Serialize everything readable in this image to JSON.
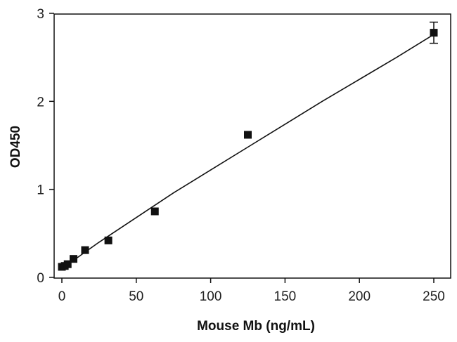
{
  "chart_data": {
    "type": "scatter",
    "title": "",
    "xlabel": "Mouse Mb (ng/mL)",
    "ylabel": "OD450",
    "xlim": [
      0,
      250
    ],
    "ylim": [
      0,
      3
    ],
    "xticks": [
      0,
      50,
      100,
      150,
      200,
      250
    ],
    "yticks": [
      0,
      1,
      2,
      3
    ],
    "grid": false,
    "legend": "none",
    "series": [
      {
        "marker": "square",
        "color": "#111111",
        "points": [
          {
            "x": 0,
            "y": 0.12,
            "err": 0
          },
          {
            "x": 1.95,
            "y": 0.13,
            "err": 0
          },
          {
            "x": 3.9,
            "y": 0.15,
            "err": 0
          },
          {
            "x": 7.8,
            "y": 0.21,
            "err": 0
          },
          {
            "x": 15.6,
            "y": 0.31,
            "err": 0
          },
          {
            "x": 31.25,
            "y": 0.42,
            "err": 0
          },
          {
            "x": 62.5,
            "y": 0.75,
            "err": 0
          },
          {
            "x": 125,
            "y": 1.62,
            "err": 0
          },
          {
            "x": 250,
            "y": 2.78,
            "err": 0.12
          }
        ]
      }
    ],
    "fit_curve": {
      "color": "#111111",
      "points": [
        {
          "x": 0,
          "y": 0.1
        },
        {
          "x": 25,
          "y": 0.4
        },
        {
          "x": 50,
          "y": 0.68
        },
        {
          "x": 75,
          "y": 0.96
        },
        {
          "x": 100,
          "y": 1.22
        },
        {
          "x": 125,
          "y": 1.48
        },
        {
          "x": 150,
          "y": 1.74
        },
        {
          "x": 175,
          "y": 2.0
        },
        {
          "x": 200,
          "y": 2.25
        },
        {
          "x": 225,
          "y": 2.5
        },
        {
          "x": 250,
          "y": 2.76
        }
      ]
    }
  }
}
